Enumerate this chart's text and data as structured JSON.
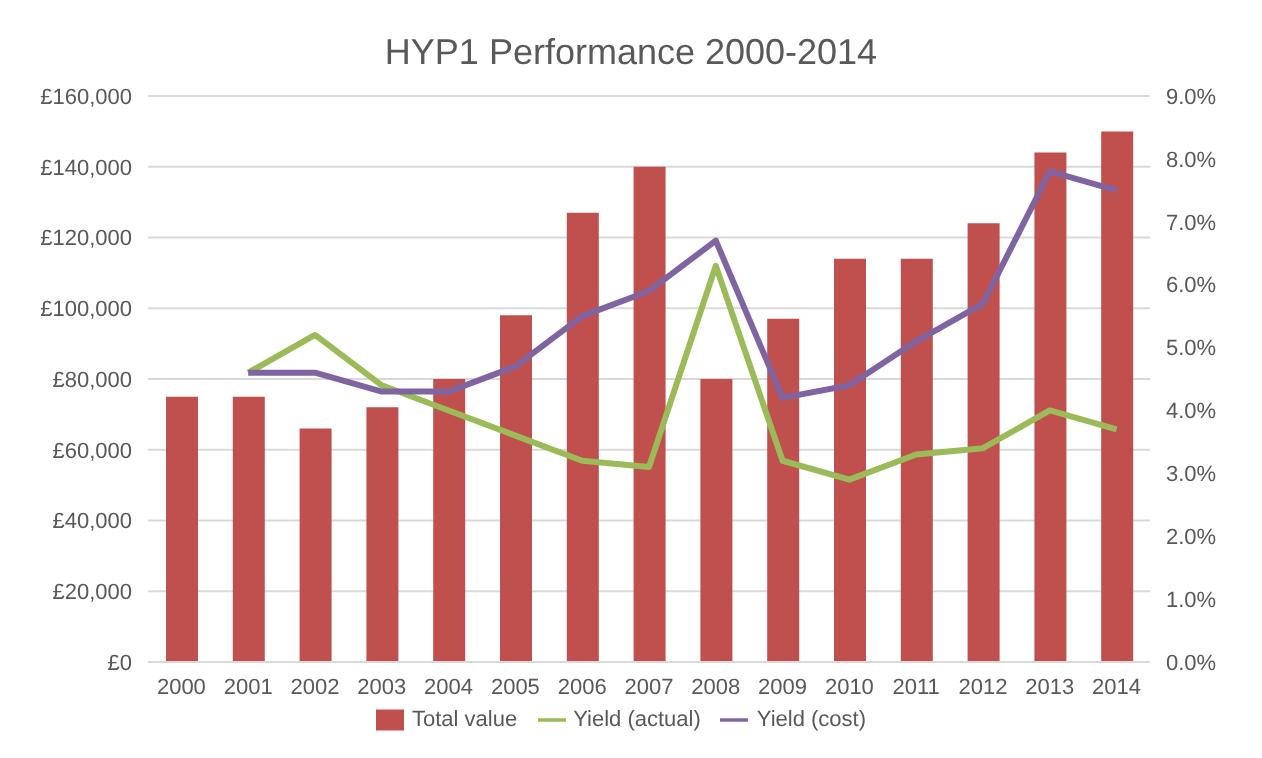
{
  "chart_data": {
    "type": "bar",
    "title": "HYP1 Performance 2000-2014",
    "categories": [
      "2000",
      "2001",
      "2002",
      "2003",
      "2004",
      "2005",
      "2006",
      "2007",
      "2008",
      "2009",
      "2010",
      "2011",
      "2012",
      "2013",
      "2014"
    ],
    "series": [
      {
        "name": "Total value",
        "color": "#c0504d",
        "values": [
          75000,
          75000,
          66000,
          72000,
          80000,
          98000,
          127000,
          140000,
          80000,
          97000,
          114000,
          114000,
          124000,
          144000,
          150000
        ]
      },
      {
        "name": "Yield (actual)",
        "type": "line",
        "axis": "y2",
        "color": "#9bbb59",
        "values": [
          null,
          4.6,
          5.2,
          4.4,
          4.0,
          3.6,
          3.2,
          3.1,
          6.3,
          3.2,
          2.9,
          3.3,
          3.4,
          4.0,
          3.7
        ]
      },
      {
        "name": "Yield (cost)",
        "type": "line",
        "axis": "y2",
        "color": "#8064a2",
        "values": [
          null,
          4.6,
          4.6,
          4.3,
          4.3,
          4.7,
          5.5,
          5.9,
          6.7,
          4.2,
          4.4,
          5.1,
          5.7,
          7.8,
          7.5
        ]
      }
    ],
    "ylim": [
      0,
      160000
    ],
    "yticks": [
      {
        "value": 0,
        "label": "£0"
      },
      {
        "value": 20000,
        "label": "£20,000"
      },
      {
        "value": 40000,
        "label": "£40,000"
      },
      {
        "value": 60000,
        "label": "£60,000"
      },
      {
        "value": 80000,
        "label": "£80,000"
      },
      {
        "value": 100000,
        "label": "£100,000"
      },
      {
        "value": 120000,
        "label": "£120,000"
      },
      {
        "value": 140000,
        "label": "£140,000"
      },
      {
        "value": 160000,
        "label": "£160,000"
      }
    ],
    "y2lim": [
      0,
      9
    ],
    "y2ticks": [
      {
        "value": 0,
        "label": "0.0%"
      },
      {
        "value": 1,
        "label": "1.0%"
      },
      {
        "value": 2,
        "label": "2.0%"
      },
      {
        "value": 3,
        "label": "3.0%"
      },
      {
        "value": 4,
        "label": "4.0%"
      },
      {
        "value": 5,
        "label": "5.0%"
      },
      {
        "value": 6,
        "label": "6.0%"
      },
      {
        "value": 7,
        "label": "7.0%"
      },
      {
        "value": 8,
        "label": "8.0%"
      },
      {
        "value": 9,
        "label": "9.0%"
      }
    ],
    "grid": "y",
    "legend": "bottom",
    "marker": "none"
  }
}
